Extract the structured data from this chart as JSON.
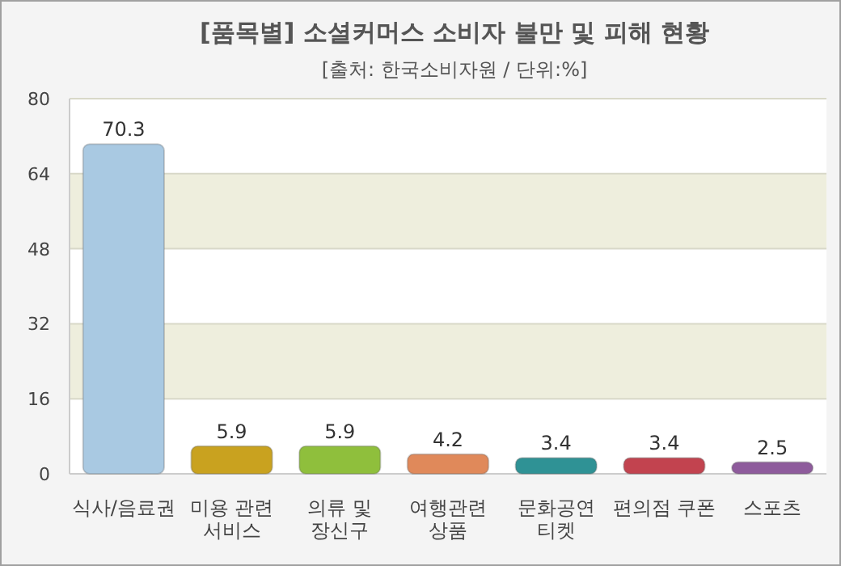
{
  "chart_data": {
    "type": "bar",
    "title": "[품목별] 소셜커머스 소비자 불만 및 피해 현황",
    "subtitle": "[출처: 한국소비자원 / 단위:%]",
    "categories": [
      "식사/음료권",
      "미용 관련 서비스",
      "의류 및 장신구",
      "여행관련 상품",
      "문화공연 티켓",
      "편의점 쿠폰",
      "스포츠"
    ],
    "values": [
      70.3,
      5.9,
      5.9,
      4.2,
      3.4,
      3.4,
      2.5
    ],
    "colors": [
      "#a9c9e2",
      "#c9a21f",
      "#8fbf3c",
      "#e0895a",
      "#2f9295",
      "#c2434f",
      "#8e5b9c"
    ],
    "ylim": [
      0,
      80
    ],
    "yticks": [
      0,
      16,
      32,
      48,
      64,
      80
    ],
    "grid": "y",
    "data_labels": true
  }
}
